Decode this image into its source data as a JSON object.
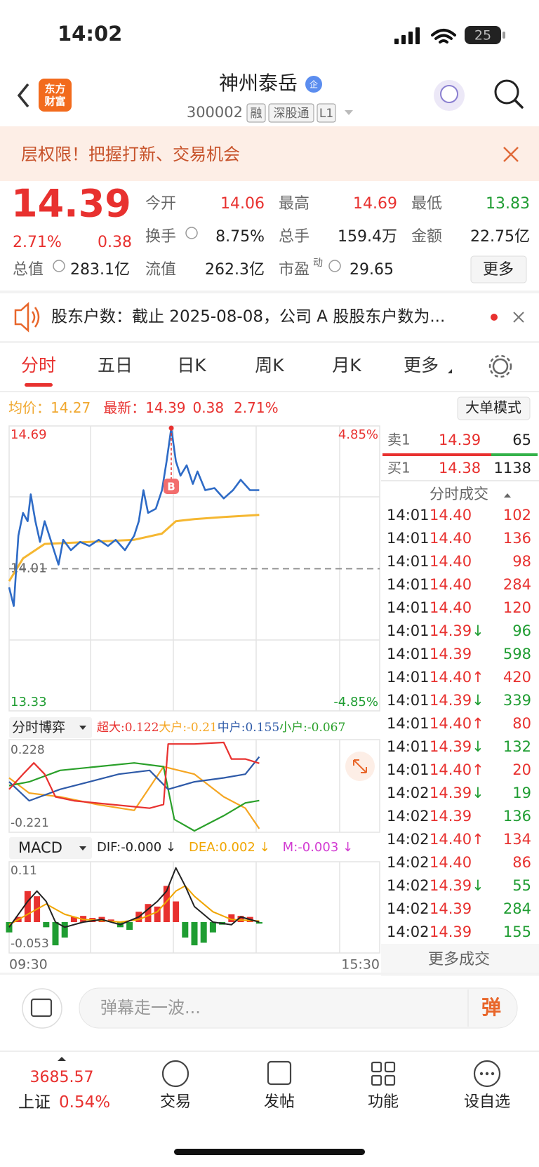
{
  "status_bar": {
    "time": "14:02",
    "battery": "25"
  },
  "header": {
    "logo": [
      "东方",
      "财富"
    ],
    "title": "神州泰岳",
    "badge": "企",
    "code": "300002",
    "tags": [
      "融",
      "深股通",
      "L1"
    ]
  },
  "banner": {
    "text": "层权限！把握打新、交易机会"
  },
  "quote": {
    "price": "14.39",
    "change_pct": "2.71%",
    "change": "0.38",
    "stats": [
      {
        "label": "今开",
        "value": "14.06"
      },
      {
        "label": "最高",
        "value": "14.69"
      },
      {
        "label": "最低",
        "value": "13.83"
      },
      {
        "label": "换手",
        "value": "8.75%"
      },
      {
        "label": "总手",
        "value": "159.4万"
      },
      {
        "label": "金额",
        "value": "22.75亿"
      },
      {
        "label": "总值",
        "value": "283.1亿"
      },
      {
        "label": "流值",
        "value": "262.3亿"
      },
      {
        "label": "市盈",
        "value": "29.65"
      }
    ],
    "pe_sup": "动",
    "more": "更多"
  },
  "notice": {
    "text": "股东户数：截止 2025-08-08，公司 A 股股东户数为..."
  },
  "tabs": [
    "分时",
    "五日",
    "日K",
    "周K",
    "月K",
    "更多"
  ],
  "summary": {
    "avg_label": "均价：",
    "avg": "14.27",
    "last_label": "最新：",
    "last": "14.39",
    "change": "0.38",
    "change_pct": "2.71%",
    "mode_button": "大单模式"
  },
  "intraday_chart": {
    "xlim": [
      0,
      240
    ],
    "ylim": [
      13.33,
      14.69
    ],
    "yticks": [
      13.33,
      14.01,
      14.69
    ],
    "y2lim": [
      -4.85,
      4.85
    ],
    "y2ticks": [
      {
        "value": -4.85,
        "label": "-4.85%"
      },
      {
        "value": 4.85,
        "label": "4.85%"
      }
    ],
    "price": {
      "color": "#2e6bc6",
      "x": [
        0,
        3,
        6,
        9,
        12,
        14,
        17,
        20,
        23,
        26,
        29,
        32,
        35,
        40,
        46,
        52,
        58,
        64,
        69,
        75,
        81,
        84,
        87,
        90,
        95,
        99,
        102,
        105,
        108,
        111,
        115,
        119,
        122,
        127,
        133,
        139,
        145,
        150,
        156,
        162
      ],
      "values": [
        13.92,
        13.83,
        14.17,
        14.28,
        14.24,
        14.37,
        14.24,
        14.14,
        14.24,
        14.17,
        14.1,
        14.03,
        14.15,
        14.1,
        14.14,
        14.12,
        14.15,
        14.12,
        14.15,
        14.1,
        14.17,
        14.24,
        14.39,
        14.28,
        14.3,
        14.39,
        14.53,
        14.69,
        14.53,
        14.46,
        14.51,
        14.42,
        14.48,
        14.39,
        14.4,
        14.35,
        14.39,
        14.44,
        14.39,
        14.39
      ]
    },
    "avg": {
      "color": "#f5b731",
      "x": [
        0,
        9,
        23,
        52,
        81,
        99,
        108,
        120,
        139,
        162
      ],
      "values": [
        13.95,
        14.06,
        14.13,
        14.14,
        14.15,
        14.18,
        14.24,
        14.25,
        14.26,
        14.27
      ]
    },
    "buy_marker": {
      "label": "B",
      "x": 105
    }
  },
  "fund_chart": {
    "selector": "分时博弈",
    "xlim": [
      0,
      240
    ],
    "ylim": [
      -0.221,
      0.228
    ],
    "yticks": [
      -0.221,
      0.228
    ],
    "series": [
      {
        "label": "超大:",
        "last": 0.122,
        "color": "#e8312f",
        "x": [
          0,
          9,
          16,
          23,
          30,
          42,
          66,
          91,
          100,
          103,
          120,
          139,
          144,
          153,
          162
        ],
        "values": [
          -0.01,
          0.067,
          0.124,
          0.067,
          -0.048,
          -0.068,
          -0.087,
          -0.106,
          -0.087,
          0.22,
          0.22,
          0.228,
          0.144,
          0.144,
          0.122
        ]
      },
      {
        "label": "大户:",
        "last": -0.21,
        "color": "#f5a623",
        "x": [
          0,
          13,
          33,
          57,
          81,
          100,
          120,
          139,
          153,
          162
        ],
        "values": [
          0.048,
          -0.029,
          -0.048,
          -0.087,
          -0.117,
          0.105,
          0.067,
          -0.048,
          -0.106,
          -0.21
        ]
      },
      {
        "label": "中户:",
        "last": 0.155,
        "color": "#2e5aa8",
        "x": [
          0,
          13,
          33,
          52,
          71,
          91,
          103,
          120,
          139,
          153,
          162
        ],
        "values": [
          0.028,
          -0.068,
          -0.01,
          0.028,
          0.067,
          0.086,
          -0.01,
          0.028,
          0.048,
          0.067,
          0.155
        ]
      },
      {
        "label": "小户:",
        "last": -0.067,
        "color": "#2aa02a",
        "x": [
          0,
          13,
          33,
          57,
          81,
          100,
          107,
          120,
          139,
          153,
          162
        ],
        "values": [
          0.009,
          0.028,
          0.086,
          0.105,
          0.124,
          0.105,
          -0.163,
          -0.221,
          -0.144,
          -0.079,
          -0.067
        ]
      }
    ]
  },
  "macd_chart": {
    "selector": "MACD",
    "xlim": [
      0,
      240
    ],
    "ylim": [
      -0.053,
      0.11
    ],
    "yticks": [
      -0.053,
      0.11
    ],
    "xticks": [
      {
        "value": 0,
        "label": "09:30"
      },
      {
        "value": 240,
        "label": "15:30"
      }
    ],
    "legend": [
      {
        "text": "DIF:-0.000 ↓",
        "color": "#222222"
      },
      {
        "text": "DEA:0.002 ↓",
        "color": "#f0a500"
      },
      {
        "text": "M:-0.003 ↓",
        "color": "#d23cd2"
      }
    ],
    "bars": {
      "up_color": "#e8312f",
      "down_color": "#1f9d32",
      "x": [
        0,
        6,
        12,
        18,
        24,
        30,
        36,
        42,
        48,
        54,
        60,
        66,
        72,
        78,
        84,
        90,
        96,
        102,
        108,
        114,
        120,
        126,
        132,
        138,
        144,
        150,
        156,
        162
      ],
      "values": [
        -0.02,
        0.01,
        0.06,
        0.05,
        -0.01,
        -0.045,
        -0.03,
        0.01,
        0.012,
        0.008,
        0.01,
        0.005,
        -0.01,
        -0.015,
        0.02,
        0.035,
        0.03,
        0.07,
        0.04,
        -0.03,
        -0.045,
        -0.04,
        -0.02,
        -0.005,
        0.015,
        0.012,
        0.01,
        -0.003
      ]
    },
    "dif": {
      "color": "#222222",
      "x": [
        0,
        12,
        18,
        24,
        30,
        36,
        48,
        60,
        72,
        84,
        96,
        102,
        108,
        114,
        120,
        132,
        144,
        150,
        162
      ],
      "values": [
        -0.01,
        0.04,
        0.06,
        0.04,
        0.0,
        -0.01,
        0.0,
        0.005,
        -0.005,
        0.01,
        0.04,
        0.06,
        0.105,
        0.07,
        0.03,
        0.0,
        -0.005,
        0.01,
        0
      ]
    },
    "dea": {
      "color": "#f0a500",
      "x": [
        0,
        12,
        24,
        36,
        48,
        60,
        72,
        84,
        96,
        108,
        114,
        120,
        132,
        144,
        162
      ],
      "values": [
        -0.005,
        0.015,
        0.035,
        0.015,
        0.005,
        0.003,
        0,
        0.005,
        0.02,
        0.06,
        0.07,
        0.05,
        0.02,
        0.005,
        0.002
      ]
    }
  },
  "order_book": {
    "ask": {
      "label": "卖1",
      "price": "14.39",
      "volume": "65"
    },
    "bid": {
      "label": "买1",
      "price": "14.38",
      "volume": "1138"
    },
    "trades_title": "分时成交",
    "trades": [
      {
        "time": "14:01",
        "price": "14.40",
        "volume": "102",
        "color": "red"
      },
      {
        "time": "14:01",
        "price": "14.40",
        "volume": "136",
        "color": "red"
      },
      {
        "time": "14:01",
        "price": "14.40",
        "volume": "98",
        "color": "red"
      },
      {
        "time": "14:01",
        "price": "14.40",
        "volume": "284",
        "color": "red"
      },
      {
        "time": "14:01",
        "price": "14.40",
        "volume": "120",
        "color": "red"
      },
      {
        "time": "14:01",
        "price": "14.39",
        "arrow": "↓",
        "volume": "96",
        "color": "green"
      },
      {
        "time": "14:01",
        "price": "14.39",
        "volume": "598",
        "color": "green"
      },
      {
        "time": "14:01",
        "price": "14.40",
        "arrow": "↑",
        "volume": "420",
        "color": "red"
      },
      {
        "time": "14:01",
        "price": "14.39",
        "arrow": "↓",
        "volume": "339",
        "color": "green"
      },
      {
        "time": "14:01",
        "price": "14.40",
        "arrow": "↑",
        "volume": "80",
        "color": "red"
      },
      {
        "time": "14:01",
        "price": "14.39",
        "arrow": "↓",
        "volume": "132",
        "color": "green"
      },
      {
        "time": "14:01",
        "price": "14.40",
        "arrow": "↑",
        "volume": "20",
        "color": "red"
      },
      {
        "time": "14:02",
        "price": "14.39",
        "arrow": "↓",
        "volume": "19",
        "color": "green"
      },
      {
        "time": "14:02",
        "price": "14.39",
        "volume": "136",
        "color": "green"
      },
      {
        "time": "14:02",
        "price": "14.40",
        "arrow": "↑",
        "volume": "134",
        "color": "red"
      },
      {
        "time": "14:02",
        "price": "14.40",
        "volume": "86",
        "color": "red"
      },
      {
        "time": "14:02",
        "price": "14.39",
        "arrow": "↓",
        "volume": "55",
        "color": "green"
      },
      {
        "time": "14:02",
        "price": "14.39",
        "volume": "284",
        "color": "green"
      },
      {
        "time": "14:02",
        "price": "14.39",
        "volume": "155",
        "color": "green"
      }
    ],
    "more": "更多成交"
  },
  "comment_bar": {
    "placeholder": "弹幕走一波...",
    "button": "弹"
  },
  "bottom_nav": {
    "index_value": "3685.57",
    "index_name": "上证",
    "index_change": "0.54%",
    "items": [
      "交易",
      "发帖",
      "功能",
      "设自选"
    ]
  }
}
